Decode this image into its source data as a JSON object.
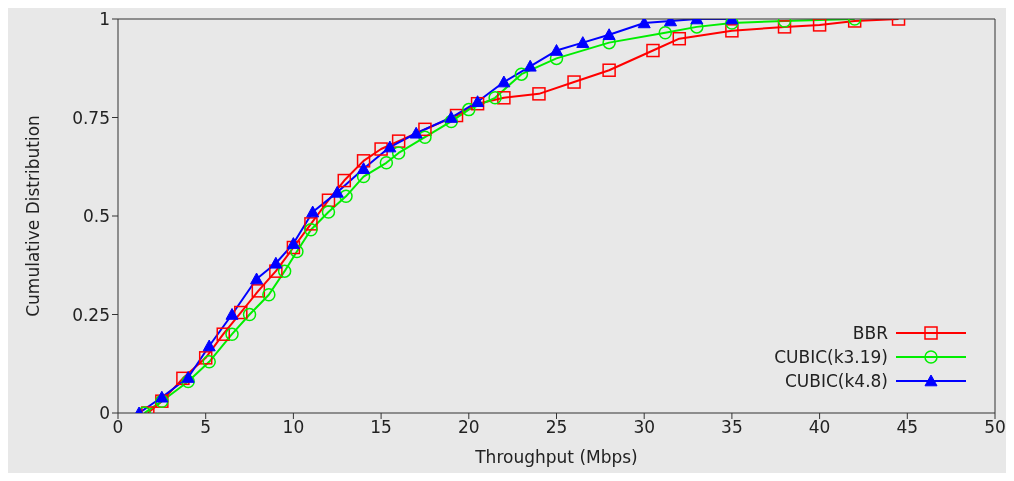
{
  "chart_data": {
    "type": "line",
    "xlabel": "Throughput (Mbps)",
    "ylabel": "Cumulative Distribution",
    "xlim": [
      0,
      50
    ],
    "xticks": [
      0,
      5,
      10,
      15,
      20,
      25,
      30,
      35,
      40,
      45,
      50
    ],
    "ylim": [
      0,
      1
    ],
    "yticks": [
      0,
      0.25,
      0.5,
      0.75,
      1
    ],
    "legend": "bottom right",
    "line_style": "solid",
    "series": [
      {
        "name": "BBR",
        "color": "#ff0000",
        "marker": "square",
        "x": [
          1.7,
          2.5,
          3.7,
          5,
          6,
          7,
          8,
          9,
          10,
          11,
          12,
          12.9,
          14,
          15,
          16,
          17.5,
          19.3,
          20.5,
          22,
          24,
          26,
          28,
          30.5,
          32,
          35,
          38,
          40,
          42,
          44.5
        ],
        "values": [
          0,
          0.03,
          0.088,
          0.14,
          0.2,
          0.255,
          0.31,
          0.36,
          0.42,
          0.48,
          0.54,
          0.59,
          0.64,
          0.67,
          0.69,
          0.72,
          0.755,
          0.785,
          0.8,
          0.81,
          0.84,
          0.87,
          0.92,
          0.95,
          0.97,
          0.98,
          0.985,
          0.995,
          1
        ]
      },
      {
        "name": "CUBIC(k3.19)",
        "color": "#00ee00",
        "marker": "circle",
        "x": [
          1.5,
          2.5,
          4,
          5.2,
          6.5,
          7.5,
          8.6,
          9.5,
          10.2,
          11,
          12,
          13,
          14,
          15.3,
          16,
          17.5,
          19,
          20,
          21.5,
          23,
          25,
          28,
          31.2,
          33,
          35,
          38,
          42
        ],
        "values": [
          0,
          0.03,
          0.08,
          0.13,
          0.2,
          0.25,
          0.3,
          0.36,
          0.41,
          0.465,
          0.51,
          0.55,
          0.6,
          0.635,
          0.66,
          0.7,
          0.74,
          0.77,
          0.8,
          0.86,
          0.9,
          0.94,
          0.965,
          0.98,
          0.99,
          0.995,
          1
        ]
      },
      {
        "name": "CUBIC(k4.8)",
        "color": "#0000ff",
        "marker": "triangle",
        "x": [
          1.2,
          2.5,
          4,
          5.2,
          6.5,
          7.9,
          9,
          10,
          11.1,
          12.5,
          14,
          15.5,
          17,
          19,
          20.5,
          22,
          23.5,
          25,
          26.5,
          28,
          30,
          31.5,
          33,
          35
        ],
        "values": [
          0,
          0.04,
          0.09,
          0.17,
          0.25,
          0.34,
          0.38,
          0.43,
          0.51,
          0.56,
          0.62,
          0.675,
          0.71,
          0.75,
          0.79,
          0.84,
          0.88,
          0.92,
          0.94,
          0.96,
          0.99,
          0.995,
          1,
          1
        ]
      }
    ]
  }
}
